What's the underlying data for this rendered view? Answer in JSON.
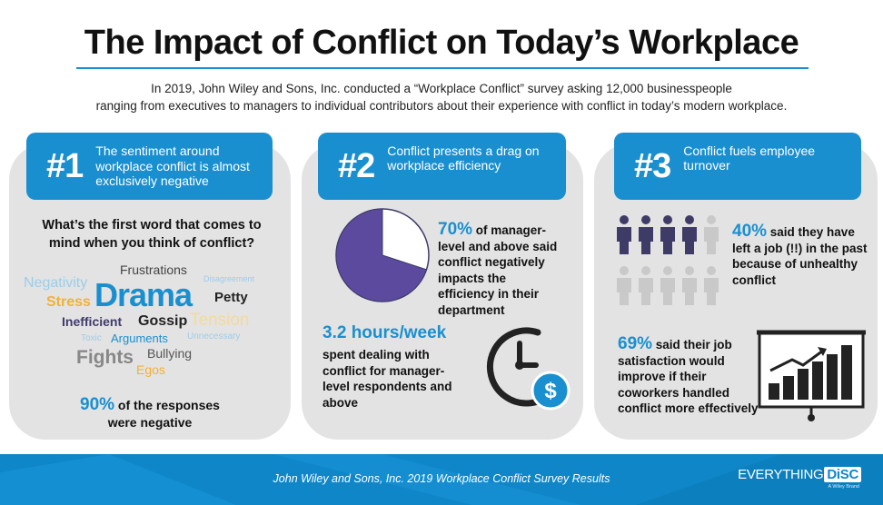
{
  "title": "The Impact of Conflict on Today’s Workplace",
  "intro": {
    "line1": "In 2019, John Wiley and Sons, Inc. conducted a “Workplace Conflict” survey asking 12,000 businesspeople",
    "line2": "ranging from executives to managers to individual contributors about their experience with conflict in today’s modern workplace."
  },
  "panels": [
    {
      "number": "#1",
      "heading": "The sentiment around workplace conflict is almost exclusively negative",
      "question": "What’s the first word that comes to mind when you think of conflict?",
      "words": [
        "Negativity",
        "Frustrations",
        "Disagreement",
        "Stress",
        "Drama",
        "Petty",
        "Inefficient",
        "Gossip",
        "Tension",
        "Toxic",
        "Arguments",
        "Unnecessary",
        "Fights",
        "Bullying",
        "Egos"
      ],
      "stat_value": "90%",
      "stat_text_1": " of the responses",
      "stat_text_2": "were negative"
    },
    {
      "number": "#2",
      "heading": "Conflict presents a drag on workplace efficiency",
      "stat_value": "70%",
      "stat_text": " of manager-level and above said conflict negatively impacts the efficiency in their department",
      "hours_value": "3.2 hours/week",
      "hours_text": "spent dealing with conflict for manager-level respondents and above"
    },
    {
      "number": "#3",
      "heading": "Conflict fuels employee turnover",
      "stat_value": "40%",
      "stat_text": " said they have left a job (!!) in the past because of unhealthy conflict",
      "stat2_value": "69%",
      "stat2_text": " said their job satisfaction would improve if their coworkers handled conflict more effectively"
    }
  ],
  "pie_fraction": 0.7,
  "people_highlighted": 4,
  "people_total": 10,
  "footer": {
    "text": "John Wiley and Sons, Inc. 2019 Workplace Conflict Survey Results",
    "brand_left": "EVERYTHING",
    "brand_right": "DiSC",
    "brand_sub": "A Wiley Brand"
  },
  "colors": {
    "accent": "#1a8fd0",
    "panel": "#e3e3e3",
    "pie": "#5b4a9e",
    "person_dark": "#3f3b67",
    "person_light": "#c9c9c9"
  }
}
